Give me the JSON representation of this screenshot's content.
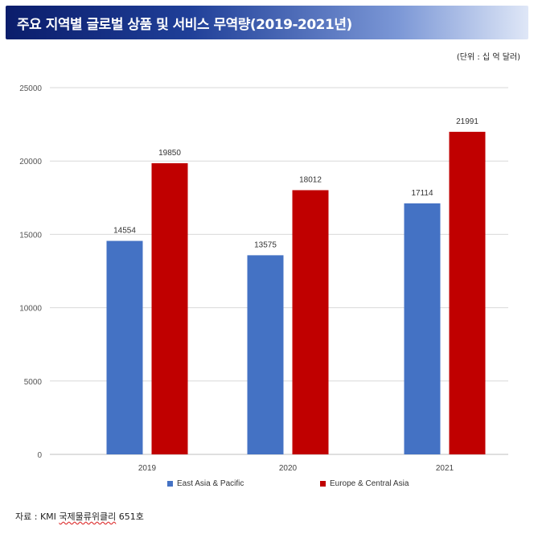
{
  "title": "주요 지역별 글로벌 상품 및 서비스 무역량(2019-2021년)",
  "unit": "(단위 : 십 억 달러)",
  "source": {
    "prefix": "자료 : KMI ",
    "name": "국제물류위클리",
    "suffix": " 651호"
  },
  "colors": {
    "east_asia": "#4472c4",
    "europe": "#c00000"
  },
  "legend": [
    {
      "name": "East Asia & Pacific",
      "color": "#4472c4"
    },
    {
      "name": "Europe & Central Asia",
      "color": "#c00000"
    }
  ],
  "chart_data": {
    "type": "bar",
    "title": "",
    "xlabel": "",
    "ylabel": "",
    "categories": [
      "2019",
      "2020",
      "2021"
    ],
    "series": [
      {
        "name": "East Asia & Pacific",
        "values": [
          14554,
          13575,
          17114
        ]
      },
      {
        "name": "Europe & Central Asia",
        "values": [
          19850,
          18012,
          21991
        ]
      }
    ],
    "ylim": [
      0,
      25000
    ],
    "yticks": [
      "0",
      "5000",
      "10000",
      "15000",
      "20000",
      "25000"
    ],
    "data_labels": [
      [
        "14554",
        "13575",
        "17114"
      ],
      [
        "19850",
        "18012",
        "21991"
      ]
    ],
    "grid": true,
    "legend_position": "bottom"
  }
}
